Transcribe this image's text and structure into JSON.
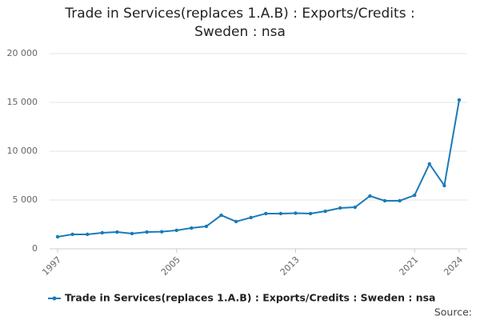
{
  "chart_data": {
    "type": "line",
    "title": "Trade in Services(replaces 1.A.B) : Exports/Credits : Sweden : nsa",
    "x": [
      1997,
      1998,
      1999,
      2000,
      2001,
      2002,
      2003,
      2004,
      2005,
      2006,
      2007,
      2008,
      2009,
      2010,
      2011,
      2012,
      2013,
      2014,
      2015,
      2016,
      2017,
      2018,
      2019,
      2020,
      2021,
      2022,
      2023,
      2024
    ],
    "series": [
      {
        "name": "Trade in Services(replaces 1.A.B) : Exports/Credits : Sweden : nsa",
        "color": "#1a7ab8",
        "values": [
          1230,
          1480,
          1480,
          1640,
          1720,
          1560,
          1720,
          1750,
          1890,
          2130,
          2300,
          3440,
          2790,
          3200,
          3610,
          3610,
          3650,
          3610,
          3850,
          4180,
          4260,
          5410,
          4920,
          4920,
          5490,
          8690,
          6480,
          15250
        ]
      }
    ],
    "xlim": [
      1997,
      2024
    ],
    "xticks": [
      1997,
      2005,
      2013,
      2021,
      2024
    ],
    "ylim": [
      0,
      20000
    ],
    "yticks": [
      0,
      {
        "value": 5000,
        "label": "5 000"
      },
      {
        "value": 10000,
        "label": "10 000"
      },
      {
        "value": 15000,
        "label": "15 000"
      },
      {
        "value": 20000,
        "label": "20 000"
      }
    ],
    "grid": true,
    "source": "Source:"
  }
}
